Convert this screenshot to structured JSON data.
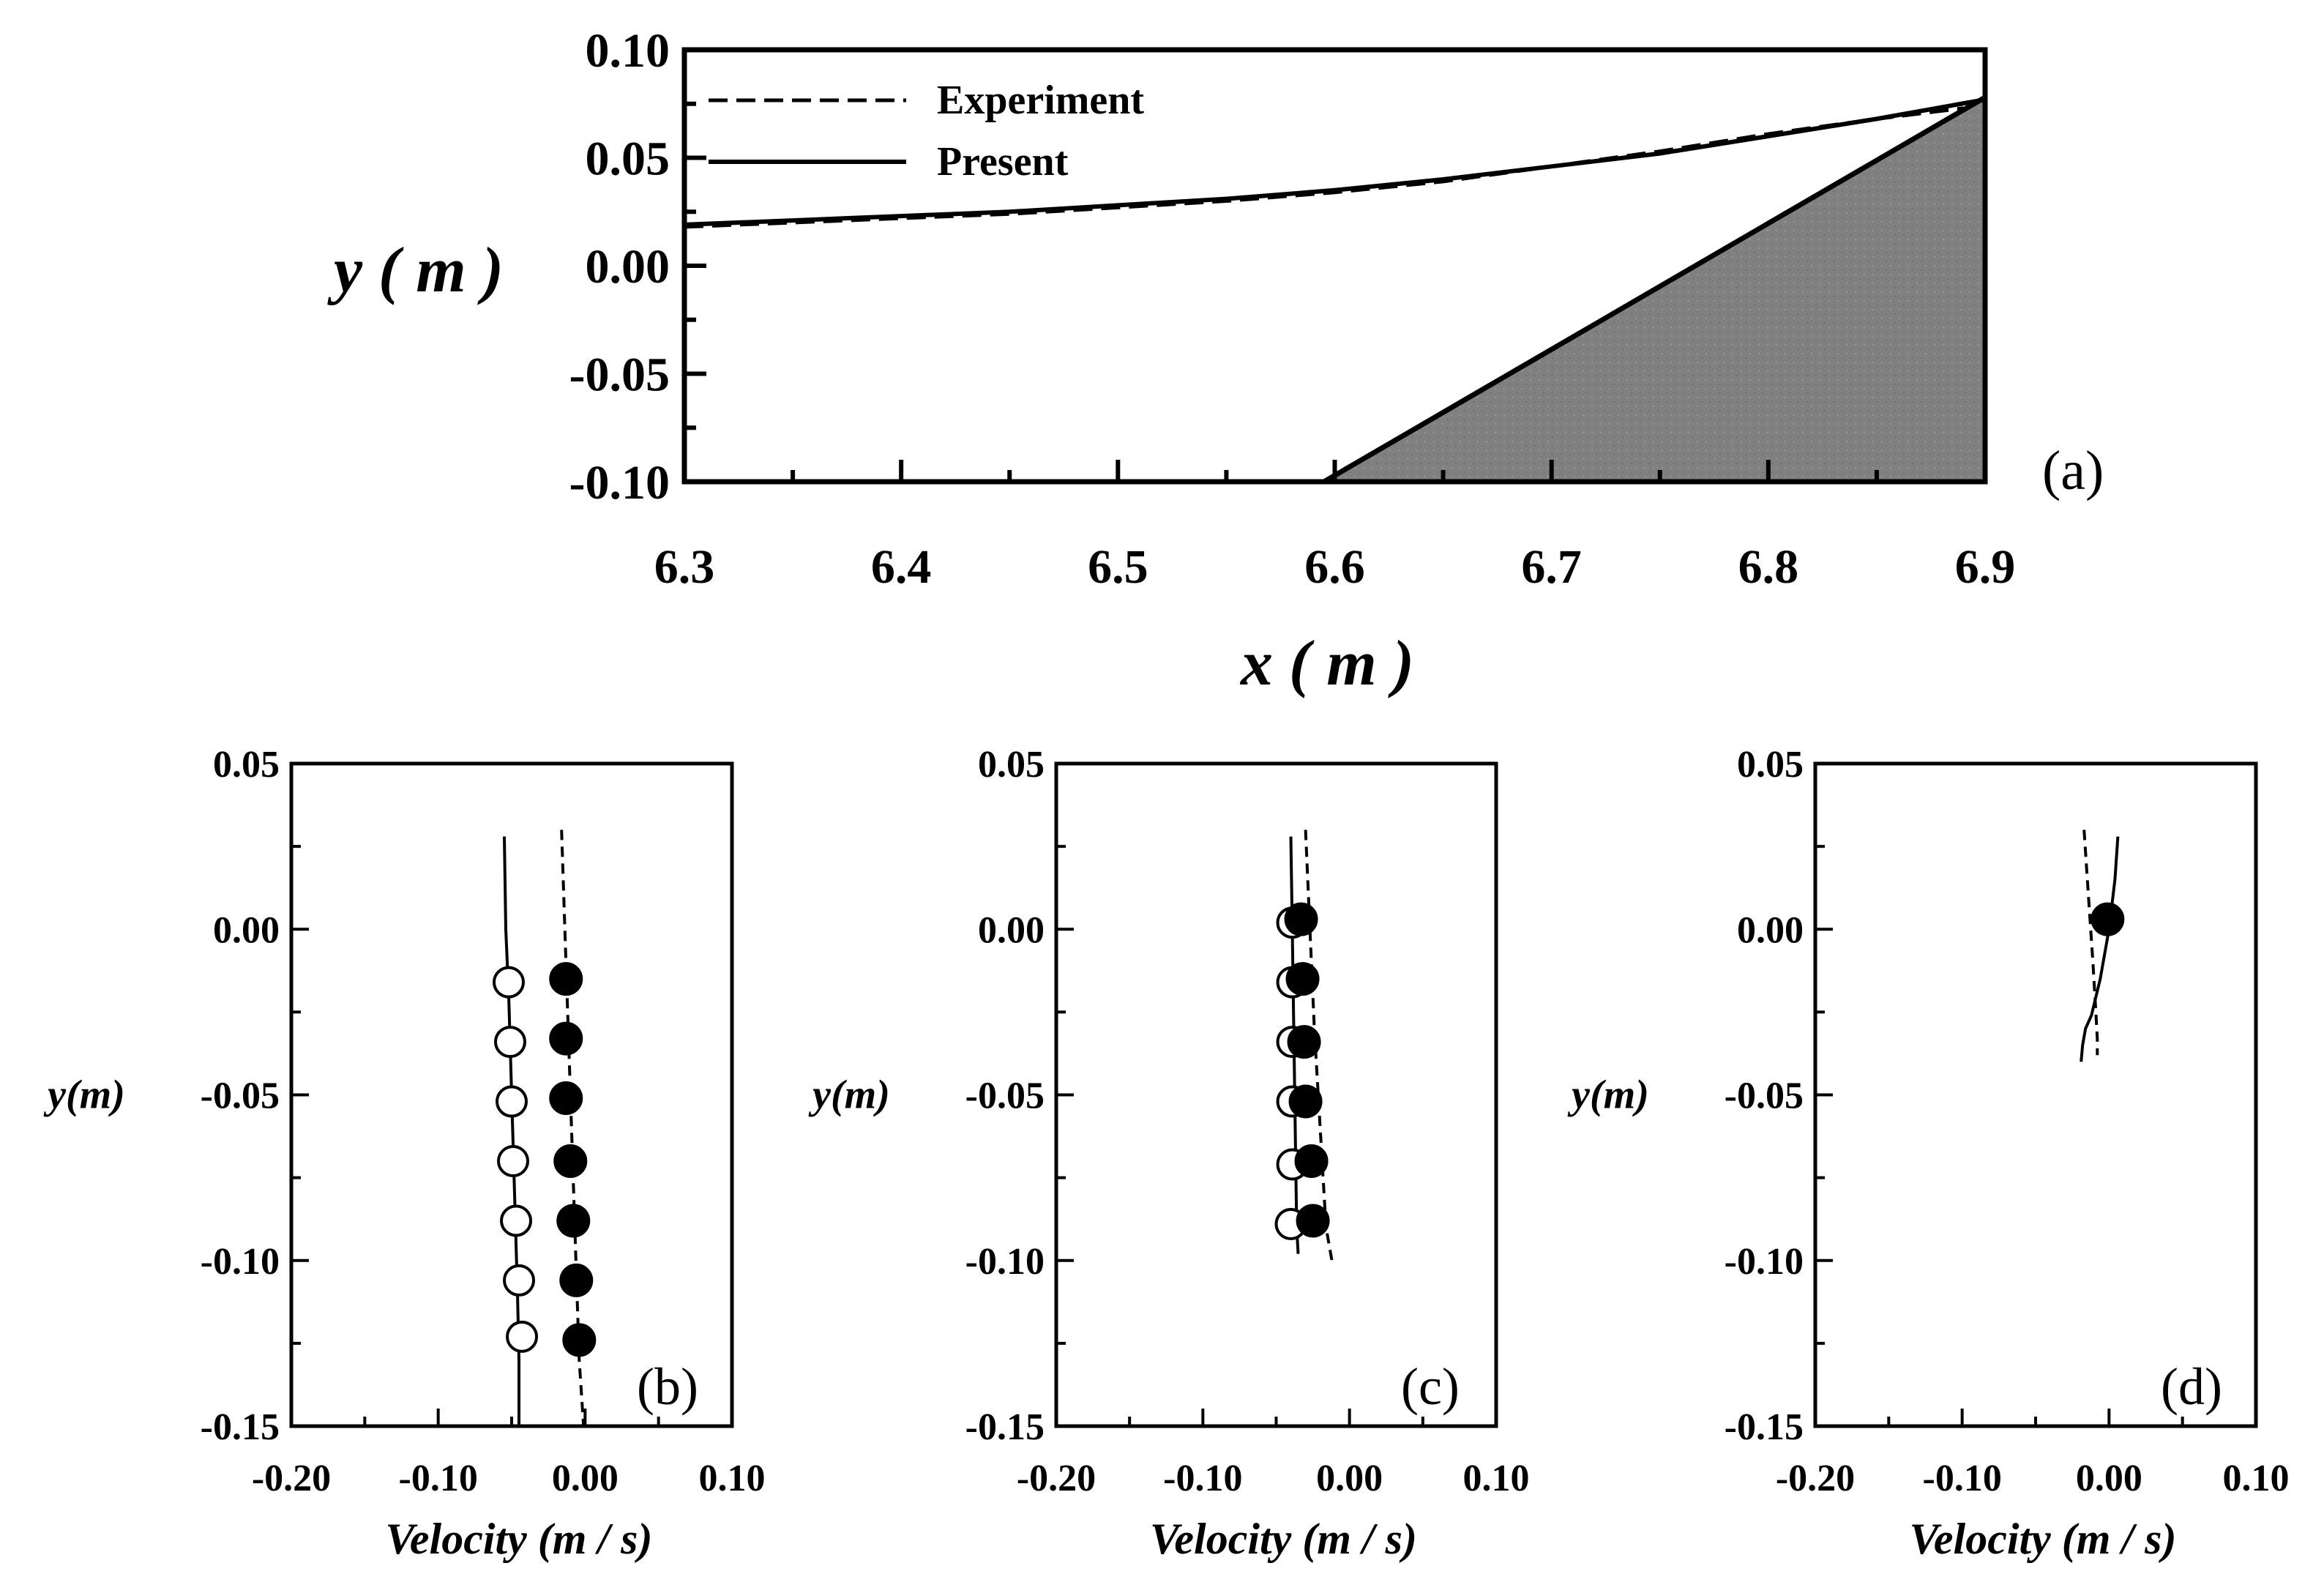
{
  "chart_data": [
    {
      "id": "a",
      "type": "line",
      "panel_label": "(a)",
      "xlabel": "x ( m )",
      "ylabel": "y ( m )",
      "xlim": [
        6.3,
        6.9
      ],
      "ylim": [
        -0.1,
        0.1
      ],
      "xticks": [
        "6.3",
        "6.4",
        "6.5",
        "6.6",
        "6.7",
        "6.8",
        "6.9"
      ],
      "yticks": [
        "0.10",
        "0.05",
        "0.00",
        "-0.05",
        "-0.10"
      ],
      "legend_position": "top-left",
      "series": [
        {
          "name": "Experiment",
          "style": "dashed",
          "x": [
            6.3,
            6.35,
            6.4,
            6.45,
            6.5,
            6.55,
            6.6,
            6.65,
            6.7,
            6.75,
            6.8,
            6.85,
            6.89
          ],
          "y": [
            0.018,
            0.02,
            0.022,
            0.024,
            0.027,
            0.03,
            0.034,
            0.039,
            0.046,
            0.053,
            0.061,
            0.068,
            0.073
          ]
        },
        {
          "name": "Present",
          "style": "solid",
          "x": [
            6.3,
            6.35,
            6.4,
            6.45,
            6.5,
            6.55,
            6.6,
            6.65,
            6.7,
            6.75,
            6.8,
            6.85,
            6.9
          ],
          "y": [
            0.019,
            0.021,
            0.023,
            0.025,
            0.028,
            0.031,
            0.035,
            0.04,
            0.046,
            0.052,
            0.06,
            0.068,
            0.077
          ]
        }
      ],
      "slope": {
        "x": [
          6.595,
          6.9,
          6.9
        ],
        "y": [
          -0.1,
          0.078,
          -0.1
        ],
        "fill": "#808080"
      }
    },
    {
      "id": "b",
      "type": "scatter",
      "panel_label": "(b)",
      "xlabel": "Velocity (m / s)",
      "ylabel": "y(m)",
      "xlim": [
        -0.2,
        0.1
      ],
      "ylim": [
        -0.15,
        0.05
      ],
      "xticks": [
        "-0.20",
        "-0.10",
        "0.00",
        "0.10"
      ],
      "yticks": [
        "0.05",
        "0.00",
        "-0.05",
        "-0.10",
        "-0.15"
      ],
      "open_points": {
        "x": [
          -0.052,
          -0.051,
          -0.05,
          -0.049,
          -0.047,
          -0.045,
          -0.043
        ],
        "y": [
          -0.016,
          -0.034,
          -0.052,
          -0.07,
          -0.088,
          -0.106,
          -0.123
        ]
      },
      "filled_points": {
        "x": [
          -0.013,
          -0.013,
          -0.013,
          -0.01,
          -0.008,
          -0.006,
          -0.004
        ],
        "y": [
          -0.015,
          -0.033,
          -0.051,
          -0.07,
          -0.088,
          -0.106,
          -0.124
        ]
      },
      "solid_line": {
        "x": [
          -0.055,
          -0.054,
          -0.052,
          -0.05,
          -0.048,
          -0.046,
          -0.045,
          -0.045
        ],
        "y": [
          0.028,
          0.0,
          -0.02,
          -0.05,
          -0.08,
          -0.11,
          -0.13,
          -0.15
        ]
      },
      "dashed_line": {
        "x": [
          -0.016,
          -0.013,
          -0.01,
          -0.007,
          -0.004,
          -0.001
        ],
        "y": [
          0.03,
          -0.01,
          -0.05,
          -0.09,
          -0.13,
          -0.15
        ]
      }
    },
    {
      "id": "c",
      "type": "scatter",
      "panel_label": "(c)",
      "xlabel": "Velocity (m / s)",
      "ylabel": "y(m)",
      "xlim": [
        -0.2,
        0.1
      ],
      "ylim": [
        -0.15,
        0.05
      ],
      "xticks": [
        "-0.20",
        "-0.10",
        "0.00",
        "0.10"
      ],
      "yticks": [
        "0.05",
        "0.00",
        "-0.05",
        "-0.10",
        "-0.15"
      ],
      "open_points": {
        "x": [
          -0.039,
          -0.039,
          -0.039,
          -0.039,
          -0.039,
          -0.04
        ],
        "y": [
          0.002,
          -0.016,
          -0.034,
          -0.052,
          -0.071,
          -0.089
        ]
      },
      "filled_points": {
        "x": [
          -0.033,
          -0.032,
          -0.031,
          -0.03,
          -0.026,
          -0.025
        ],
        "y": [
          0.003,
          -0.015,
          -0.034,
          -0.052,
          -0.07,
          -0.088
        ]
      },
      "solid_line": {
        "x": [
          -0.04,
          -0.039,
          -0.038,
          -0.037,
          -0.036,
          -0.035
        ],
        "y": [
          0.028,
          0.0,
          -0.03,
          -0.06,
          -0.09,
          -0.098
        ]
      },
      "dashed_line": {
        "x": [
          -0.03,
          -0.027,
          -0.024,
          -0.02,
          -0.016,
          -0.012
        ],
        "y": [
          0.03,
          0.0,
          -0.03,
          -0.06,
          -0.09,
          -0.1
        ]
      }
    },
    {
      "id": "d",
      "type": "scatter",
      "panel_label": "(d)",
      "xlabel": "Velocity (m / s)",
      "ylabel": "y(m)",
      "xlim": [
        -0.2,
        0.1
      ],
      "ylim": [
        -0.15,
        0.05
      ],
      "xticks": [
        "-0.20",
        "-0.10",
        "0.00",
        "0.10"
      ],
      "yticks": [
        "0.05",
        "0.00",
        "-0.05",
        "-0.10",
        "-0.15"
      ],
      "open_points": {
        "x": [],
        "y": []
      },
      "filled_points": {
        "x": [
          -0.001
        ],
        "y": [
          0.003
        ]
      },
      "solid_line": {
        "x": [
          0.006,
          0.004,
          0.0,
          -0.006,
          -0.012,
          -0.016,
          -0.018,
          -0.019
        ],
        "y": [
          0.028,
          0.015,
          0.0,
          -0.015,
          -0.026,
          -0.03,
          -0.035,
          -0.04
        ]
      },
      "dashed_line": {
        "x": [
          -0.017,
          -0.014,
          -0.011,
          -0.009,
          -0.008,
          -0.008
        ],
        "y": [
          0.03,
          0.01,
          -0.01,
          -0.025,
          -0.033,
          -0.038
        ]
      }
    }
  ]
}
